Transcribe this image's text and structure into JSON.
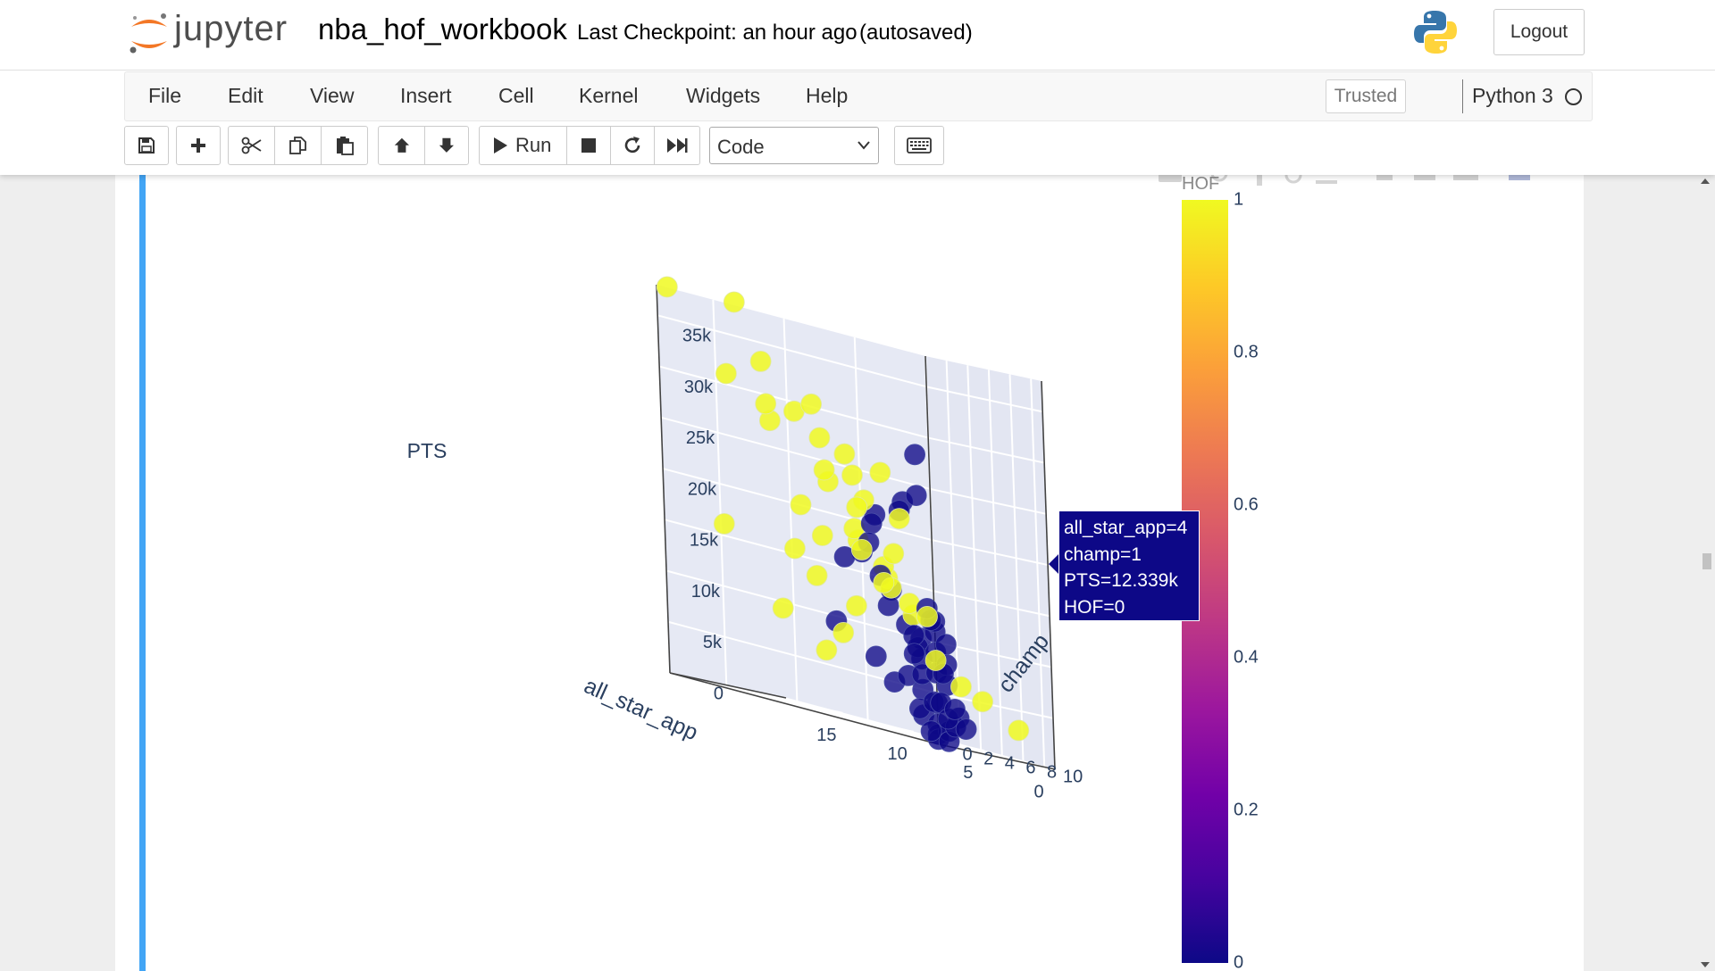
{
  "header": {
    "logo_text": "jupyter",
    "notebook_name": "nba_hof_workbook",
    "checkpoint": "Last Checkpoint: an hour ago",
    "autosave": "(autosaved)",
    "logout_label": "Logout"
  },
  "menubar": {
    "items": [
      "File",
      "Edit",
      "View",
      "Insert",
      "Cell",
      "Kernel",
      "Widgets",
      "Help"
    ],
    "trusted": "Trusted",
    "kernel_name": "Python 3"
  },
  "toolbar": {
    "run_label": "Run",
    "cell_type": "Code",
    "icons": [
      "save-icon",
      "plus-icon",
      "scissors-icon",
      "copy-icon",
      "paste-icon",
      "arrow-up-icon",
      "arrow-down-icon",
      "run-icon",
      "stop-icon",
      "restart-icon",
      "fast-forward-icon",
      "keyboard-icon"
    ]
  },
  "tooltip": {
    "lines": [
      "all_star_app=4",
      "champ=1",
      "PTS=12.339k",
      "HOF=0"
    ]
  },
  "colorbar": {
    "title": "HOF",
    "ticks": [
      "0",
      "0.2",
      "0.4",
      "0.6",
      "0.8",
      "1"
    ]
  },
  "chart_data": {
    "type": "scatter3d",
    "axes": {
      "x": {
        "title": "all_star_app",
        "ticks": [
          "0",
          "5",
          "10",
          "15"
        ],
        "range": [
          0,
          19
        ]
      },
      "y": {
        "title": "champ",
        "ticks": [
          "0",
          "2",
          "4",
          "6",
          "8",
          "10"
        ],
        "range": [
          0,
          11
        ]
      },
      "z": {
        "title": "PTS",
        "ticks": [
          "0",
          "5k",
          "10k",
          "15k",
          "20k",
          "25k",
          "30k",
          "35k"
        ],
        "range": [
          0,
          38000
        ]
      }
    },
    "color_key": "HOF",
    "colors": {
      "hof1": "#f0f921",
      "hof0": "#0d0887"
    },
    "points": [
      {
        "a": 19,
        "c": 1,
        "p": 38000,
        "h": 1
      },
      {
        "a": 18,
        "c": 6,
        "p": 38000,
        "h": 1
      },
      {
        "a": 15,
        "c": 1,
        "p": 31000,
        "h": 1
      },
      {
        "a": 14,
        "c": 3,
        "p": 33000,
        "h": 1
      },
      {
        "a": 13,
        "c": 2,
        "p": 29000,
        "h": 1
      },
      {
        "a": 12,
        "c": 5,
        "p": 30000,
        "h": 1
      },
      {
        "a": 11,
        "c": 2,
        "p": 29000,
        "h": 1
      },
      {
        "a": 12,
        "c": 1,
        "p": 27500,
        "h": 1
      },
      {
        "a": 10,
        "c": 3,
        "p": 27000,
        "h": 1
      },
      {
        "a": 9,
        "c": 4,
        "p": 26000,
        "h": 1
      },
      {
        "a": 8,
        "c": 6,
        "p": 25000,
        "h": 1
      },
      {
        "a": 9,
        "c": 2,
        "p": 24000,
        "h": 1
      },
      {
        "a": 10,
        "c": 6,
        "p": 24000,
        "h": 1
      },
      {
        "a": 8,
        "c": 1,
        "p": 23000,
        "h": 1
      },
      {
        "a": 7,
        "c": 3,
        "p": 22000,
        "h": 1
      },
      {
        "a": 6,
        "c": 5,
        "p": 21000,
        "h": 1
      },
      {
        "a": 7,
        "c": 2,
        "p": 19000,
        "h": 1
      },
      {
        "a": 6,
        "c": 1,
        "p": 18000,
        "h": 1
      },
      {
        "a": 5,
        "c": 3,
        "p": 17500,
        "h": 1
      },
      {
        "a": 5,
        "c": 2,
        "p": 16000,
        "h": 1
      },
      {
        "a": 4,
        "c": 1,
        "p": 15000,
        "h": 1
      },
      {
        "a": 8,
        "c": 4,
        "p": 17000,
        "h": 1
      },
      {
        "a": 6,
        "c": 4,
        "p": 14000,
        "h": 1
      },
      {
        "a": 4,
        "c": 3,
        "p": 13000,
        "h": 1
      },
      {
        "a": 3,
        "c": 2,
        "p": 12000,
        "h": 1
      },
      {
        "a": 5,
        "c": 6,
        "p": 12000,
        "h": 1
      },
      {
        "a": 3,
        "c": 4,
        "p": 8000,
        "h": 1
      },
      {
        "a": 2,
        "c": 5,
        "p": 6000,
        "h": 1
      },
      {
        "a": 2,
        "c": 7,
        "p": 5000,
        "h": 1
      },
      {
        "a": 1,
        "c": 9,
        "p": 3000,
        "h": 1
      },
      {
        "a": 18,
        "c": 11,
        "p": 15000,
        "h": 1
      },
      {
        "a": 17,
        "c": 3,
        "p": 16000,
        "h": 1
      },
      {
        "a": 16,
        "c": 11,
        "p": 17000,
        "h": 1
      },
      {
        "a": 15,
        "c": 9,
        "p": 13000,
        "h": 1
      },
      {
        "a": 14,
        "c": 10,
        "p": 8000,
        "h": 1
      },
      {
        "a": 13,
        "c": 7,
        "p": 6000,
        "h": 1
      },
      {
        "a": 13,
        "c": 10,
        "p": 11000,
        "h": 1
      },
      {
        "a": 11,
        "c": 10,
        "p": 14000,
        "h": 1
      },
      {
        "a": 16,
        "c": 7,
        "p": 9000,
        "h": 1
      },
      {
        "a": 9,
        "c": 5,
        "p": 21000,
        "h": 1
      },
      {
        "a": 10,
        "c": 1,
        "p": 20000,
        "h": 1
      },
      {
        "a": 1,
        "c": 0,
        "p": 28000,
        "h": 0
      },
      {
        "a": 1,
        "c": 0,
        "p": 24000,
        "h": 0
      },
      {
        "a": 2,
        "c": 0,
        "p": 23000,
        "h": 0
      },
      {
        "a": 3,
        "c": 1,
        "p": 22000,
        "h": 0
      },
      {
        "a": 4,
        "c": 0,
        "p": 21000,
        "h": 0
      },
      {
        "a": 5,
        "c": 1,
        "p": 20000,
        "h": 0
      },
      {
        "a": 6,
        "c": 2,
        "p": 18000,
        "h": 0
      },
      {
        "a": 5,
        "c": 0,
        "p": 17000,
        "h": 0
      },
      {
        "a": 7,
        "c": 1,
        "p": 16000,
        "h": 0
      },
      {
        "a": 6,
        "c": 3,
        "p": 15000,
        "h": 0
      },
      {
        "a": 4,
        "c": 1,
        "p": 12339,
        "h": 0
      },
      {
        "a": 3,
        "c": 0,
        "p": 14000,
        "h": 0
      },
      {
        "a": 2,
        "c": 2,
        "p": 13000,
        "h": 0
      },
      {
        "a": 1,
        "c": 1,
        "p": 12000,
        "h": 0
      },
      {
        "a": 2,
        "c": 0,
        "p": 11000,
        "h": 0
      },
      {
        "a": 1,
        "c": 0,
        "p": 10000,
        "h": 0
      },
      {
        "a": 3,
        "c": 2,
        "p": 10000,
        "h": 0
      },
      {
        "a": 2,
        "c": 1,
        "p": 9000,
        "h": 0
      },
      {
        "a": 1,
        "c": 0,
        "p": 8000,
        "h": 0
      },
      {
        "a": 0,
        "c": 0,
        "p": 7000,
        "h": 0
      },
      {
        "a": 1,
        "c": 2,
        "p": 7000,
        "h": 0
      },
      {
        "a": 0,
        "c": 1,
        "p": 6000,
        "h": 0
      },
      {
        "a": 2,
        "c": 0,
        "p": 6000,
        "h": 0
      },
      {
        "a": 1,
        "c": 0,
        "p": 5000,
        "h": 0
      },
      {
        "a": 0,
        "c": 0,
        "p": 4000,
        "h": 0
      },
      {
        "a": 1,
        "c": 1,
        "p": 4000,
        "h": 0
      },
      {
        "a": 0,
        "c": 2,
        "p": 3000,
        "h": 0
      },
      {
        "a": 2,
        "c": 1,
        "p": 3000,
        "h": 0
      },
      {
        "a": 0,
        "c": 0,
        "p": 2000,
        "h": 0
      },
      {
        "a": 1,
        "c": 0,
        "p": 2500,
        "h": 0
      },
      {
        "a": 0,
        "c": 1,
        "p": 1500,
        "h": 0
      },
      {
        "a": 1,
        "c": 3,
        "p": 2000,
        "h": 0
      },
      {
        "a": 0,
        "c": 0,
        "p": 1000,
        "h": 0
      },
      {
        "a": 2,
        "c": 2,
        "p": 1000,
        "h": 0
      },
      {
        "a": 0,
        "c": 0,
        "p": 500,
        "h": 0
      },
      {
        "a": 0,
        "c": 1,
        "p": 500,
        "h": 0
      },
      {
        "a": 0,
        "c": 0,
        "p": 9000,
        "h": 0
      },
      {
        "a": 0,
        "c": 1,
        "p": 10000,
        "h": 0
      },
      {
        "a": 0,
        "c": 0,
        "p": 11000,
        "h": 0
      },
      {
        "a": 0,
        "c": 0,
        "p": 12000,
        "h": 0
      },
      {
        "a": 0,
        "c": 1,
        "p": 8000,
        "h": 0
      },
      {
        "a": 1,
        "c": 0,
        "p": 6500,
        "h": 0
      },
      {
        "a": 3,
        "c": 0,
        "p": 5000,
        "h": 0
      },
      {
        "a": 2,
        "c": 3,
        "p": 4000,
        "h": 0
      },
      {
        "a": 1,
        "c": 4,
        "p": 2000,
        "h": 0
      },
      {
        "a": 3,
        "c": 5,
        "p": 2500,
        "h": 0
      },
      {
        "a": 4,
        "c": 7,
        "p": 3500,
        "h": 0
      },
      {
        "a": 6,
        "c": 6,
        "p": 8000,
        "h": 0
      },
      {
        "a": 7,
        "c": 0,
        "p": 9500,
        "h": 0
      },
      {
        "a": 5,
        "c": 1,
        "p": 7000,
        "h": 0
      }
    ]
  }
}
